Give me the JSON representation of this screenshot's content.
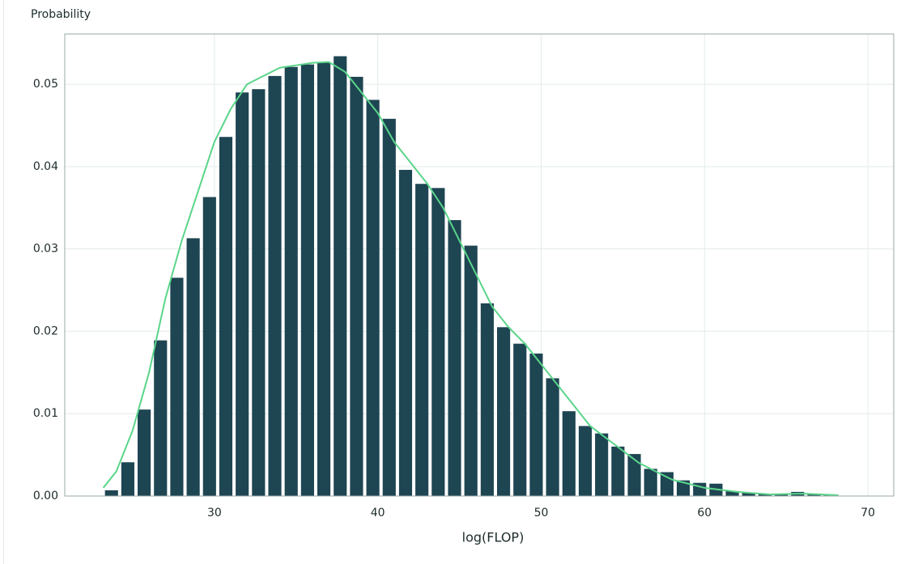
{
  "chart_data": {
    "type": "histogram",
    "y_label": "Probability",
    "x_label": "log(FLOP)",
    "bins": [
      23.2,
      24.2,
      25.2,
      26.2,
      27.2,
      28.2,
      29.2,
      30.2,
      31.2,
      32.2,
      33.2,
      34.2,
      35.2,
      36.2,
      37.2,
      38.2,
      39.2,
      40.2,
      41.2,
      42.2,
      43.2,
      44.2,
      45.2,
      46.2,
      47.2,
      48.2,
      49.2,
      50.2,
      51.2,
      52.2,
      53.2,
      54.2,
      55.2,
      56.2,
      57.2,
      58.2,
      59.2,
      60.2,
      61.2,
      62.2,
      63.2,
      64.2,
      65.2,
      66.2,
      67.2,
      68.2
    ],
    "values": [
      0.0007,
      0.0041,
      0.0105,
      0.0189,
      0.0265,
      0.0313,
      0.0363,
      0.0436,
      0.049,
      0.0494,
      0.051,
      0.0521,
      0.0524,
      0.0527,
      0.0534,
      0.0509,
      0.0481,
      0.0458,
      0.0396,
      0.0379,
      0.0374,
      0.0335,
      0.0304,
      0.0234,
      0.0205,
      0.0185,
      0.0173,
      0.0143,
      0.0103,
      0.0085,
      0.0076,
      0.006,
      0.0051,
      0.0033,
      0.0029,
      0.0019,
      0.0016,
      0.0015,
      0.0006,
      0.0004,
      0.0002,
      0.0002,
      0.0005,
      0.0002,
      0.0001
    ],
    "color": "#1e4552",
    "line": {
      "type": "line",
      "color": "#5ad58a",
      "x": [
        23.2,
        24,
        25,
        26,
        27,
        28,
        29,
        30,
        31,
        32,
        33,
        34,
        35,
        36,
        37,
        38,
        39,
        40,
        41,
        42,
        43,
        44,
        45,
        46,
        47,
        48,
        49,
        50,
        51,
        52,
        53,
        54,
        55,
        56,
        57,
        58,
        59,
        60,
        62,
        64,
        66,
        68.2
      ],
      "values": [
        0.001,
        0.003,
        0.008,
        0.015,
        0.024,
        0.031,
        0.037,
        0.043,
        0.047,
        0.05,
        0.051,
        0.052,
        0.0523,
        0.0526,
        0.0527,
        0.0515,
        0.049,
        0.0465,
        0.043,
        0.0405,
        0.038,
        0.035,
        0.031,
        0.027,
        0.023,
        0.0205,
        0.0185,
        0.016,
        0.0135,
        0.011,
        0.0085,
        0.007,
        0.0055,
        0.004,
        0.003,
        0.002,
        0.0015,
        0.001,
        0.0005,
        0.0002,
        0.0003,
        0.0001
      ]
    },
    "xlim": [
      20.84,
      71.58
    ],
    "ylim": [
      0,
      0.0561
    ],
    "xticks": [
      30,
      40,
      50,
      60,
      70
    ],
    "yticks": [
      {
        "value": 0,
        "label": "0.00"
      },
      0.01,
      0.02,
      0.03,
      0.04,
      0.05
    ],
    "grid": true
  }
}
